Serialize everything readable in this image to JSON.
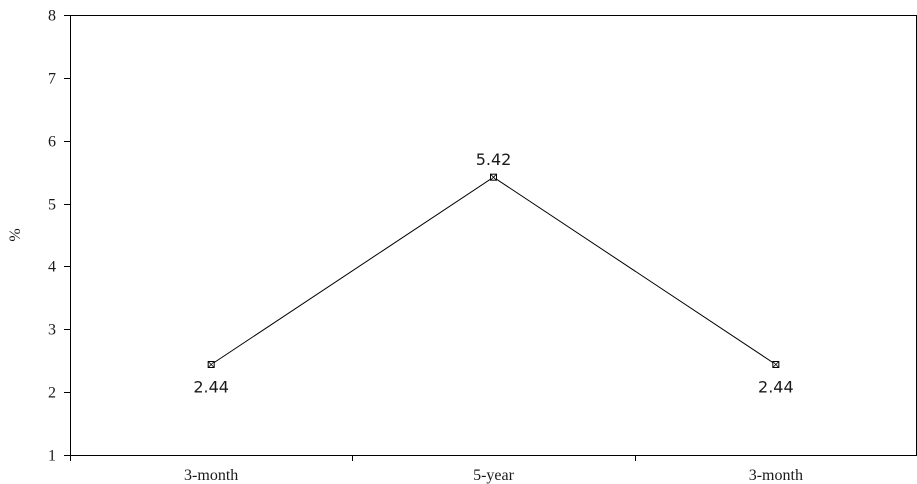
{
  "chart_data": {
    "type": "line",
    "title": "",
    "xlabel": "",
    "ylabel": "%",
    "categories": [
      "3-month",
      "5-year",
      "3-month"
    ],
    "series": [
      {
        "values": [
          2.44,
          5.42,
          2.44
        ],
        "data_labels": [
          "2.44",
          "5.42",
          "2.44"
        ],
        "label_positions": [
          "below",
          "above",
          "below"
        ],
        "color": "#000000",
        "marker": "square-cross"
      }
    ],
    "ylim": [
      1,
      8
    ],
    "yticks": [
      1,
      2,
      3,
      4,
      5,
      6,
      7,
      8
    ],
    "ytick_labels": [
      "1",
      "2",
      "3",
      "4",
      "5",
      "6",
      "7",
      "8"
    ],
    "grid": false,
    "legend": "none"
  }
}
